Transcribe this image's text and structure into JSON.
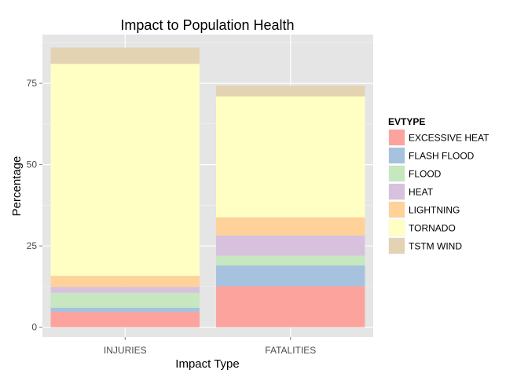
{
  "chart_data": {
    "type": "bar",
    "stacked": true,
    "title": "Impact to Population Health",
    "xlabel": "Impact Type",
    "ylabel": "Percentage",
    "categories": [
      "INJURIES",
      "FATALITIES"
    ],
    "ylim": [
      -3,
      90
    ],
    "yticks": [
      0,
      25,
      50,
      75
    ],
    "grid": true,
    "legend_position": "right",
    "legend_title": "EVTYPE",
    "series": [
      {
        "name": "EXCESSIVE HEAT",
        "color": "#FBA39C",
        "values": [
          4.7,
          12.6
        ]
      },
      {
        "name": "FLASH FLOOD",
        "color": "#A6C2DE",
        "values": [
          1.3,
          6.4
        ]
      },
      {
        "name": "FLOOD",
        "color": "#C6E7BF",
        "values": [
          4.6,
          3.0
        ]
      },
      {
        "name": "HEAT",
        "color": "#D8C1DF",
        "values": [
          1.8,
          6.2
        ]
      },
      {
        "name": "LIGHTNING",
        "color": "#FFD29A",
        "values": [
          3.4,
          5.6
        ]
      },
      {
        "name": "TORNADO",
        "color": "#FFFFC3",
        "values": [
          65.2,
          37.2
        ]
      },
      {
        "name": "TSTM WIND",
        "color": "#E3D3B2",
        "values": [
          5.0,
          3.3
        ]
      }
    ]
  }
}
